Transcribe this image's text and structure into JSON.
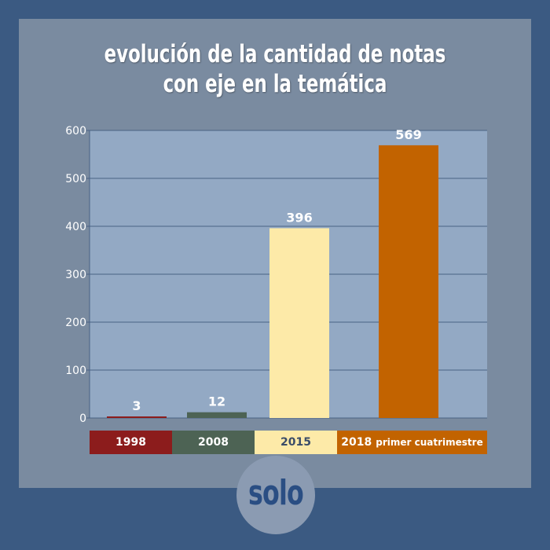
{
  "title_line1": "evolución de la cantidad de notas",
  "title_line2": "con eje en la temática",
  "logo_text": "solo",
  "chart_data": {
    "type": "bar",
    "title": "evolución de la cantidad de notas con eje en la temática",
    "categories": [
      "1998",
      "2008",
      "2015",
      "2018 primer cuatrimestre"
    ],
    "values": [
      3,
      12,
      396,
      569
    ],
    "data_labels": [
      "3",
      "12",
      "396",
      "569"
    ],
    "colors": [
      "#8c1c1c",
      "#4d6354",
      "#fdeaa8",
      "#c26300"
    ],
    "ylim": [
      0,
      600
    ],
    "yticks": [
      0,
      100,
      200,
      300,
      400,
      500,
      600
    ],
    "grid": true,
    "legend_position": "bottom",
    "xlabel": "",
    "ylabel": ""
  },
  "legend": [
    {
      "label": "1998",
      "sub": "",
      "color": "#8c1c1c",
      "text_color": "#ffffff"
    },
    {
      "label": "2008",
      "sub": "",
      "color": "#4d6354",
      "text_color": "#ffffff"
    },
    {
      "label": "2015",
      "sub": "",
      "color": "#fdeaa8",
      "text_color": "#3a4c68"
    },
    {
      "label": "2018",
      "sub": "primer cuatrimestre",
      "color": "#c26300",
      "text_color": "#ffffff"
    }
  ]
}
